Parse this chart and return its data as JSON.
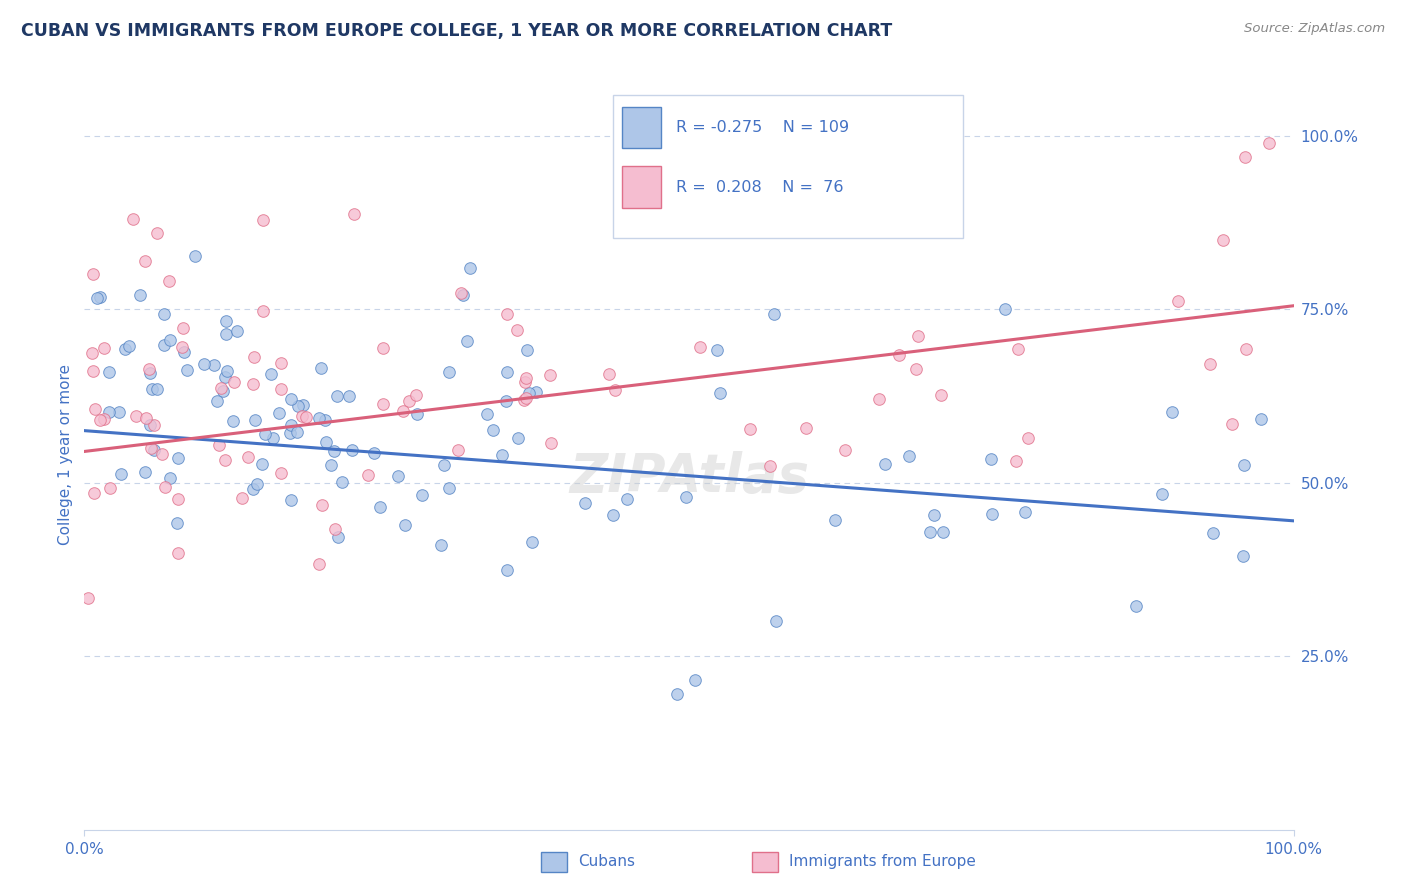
{
  "title": "CUBAN VS IMMIGRANTS FROM EUROPE COLLEGE, 1 YEAR OR MORE CORRELATION CHART",
  "source_text": "Source: ZipAtlas.com",
  "ylabel": "College, 1 year or more",
  "xlim": [
    0,
    1
  ],
  "ylim": [
    0,
    1.08
  ],
  "ytick_positions": [
    0.25,
    0.5,
    0.75,
    1.0
  ],
  "ytick_labels": [
    "25.0%",
    "50.0%",
    "75.0%",
    "100.0%"
  ],
  "xtick_positions": [
    0,
    1
  ],
  "xtick_labels": [
    "0.0%",
    "100.0%"
  ],
  "watermark": "ZIPAtlas",
  "blue_color": "#aec6e8",
  "pink_color": "#f5bdd0",
  "blue_edge_color": "#5585c5",
  "pink_edge_color": "#e0708a",
  "blue_line_color": "#4472c4",
  "pink_line_color": "#d9607a",
  "title_color": "#1f3864",
  "axis_color": "#4472c4",
  "grid_color": "#c8d4e8",
  "legend_text_color": "#4472c4",
  "blue_intercept": 0.575,
  "blue_slope": -0.13,
  "pink_intercept": 0.545,
  "pink_slope": 0.21,
  "seed": 1234
}
